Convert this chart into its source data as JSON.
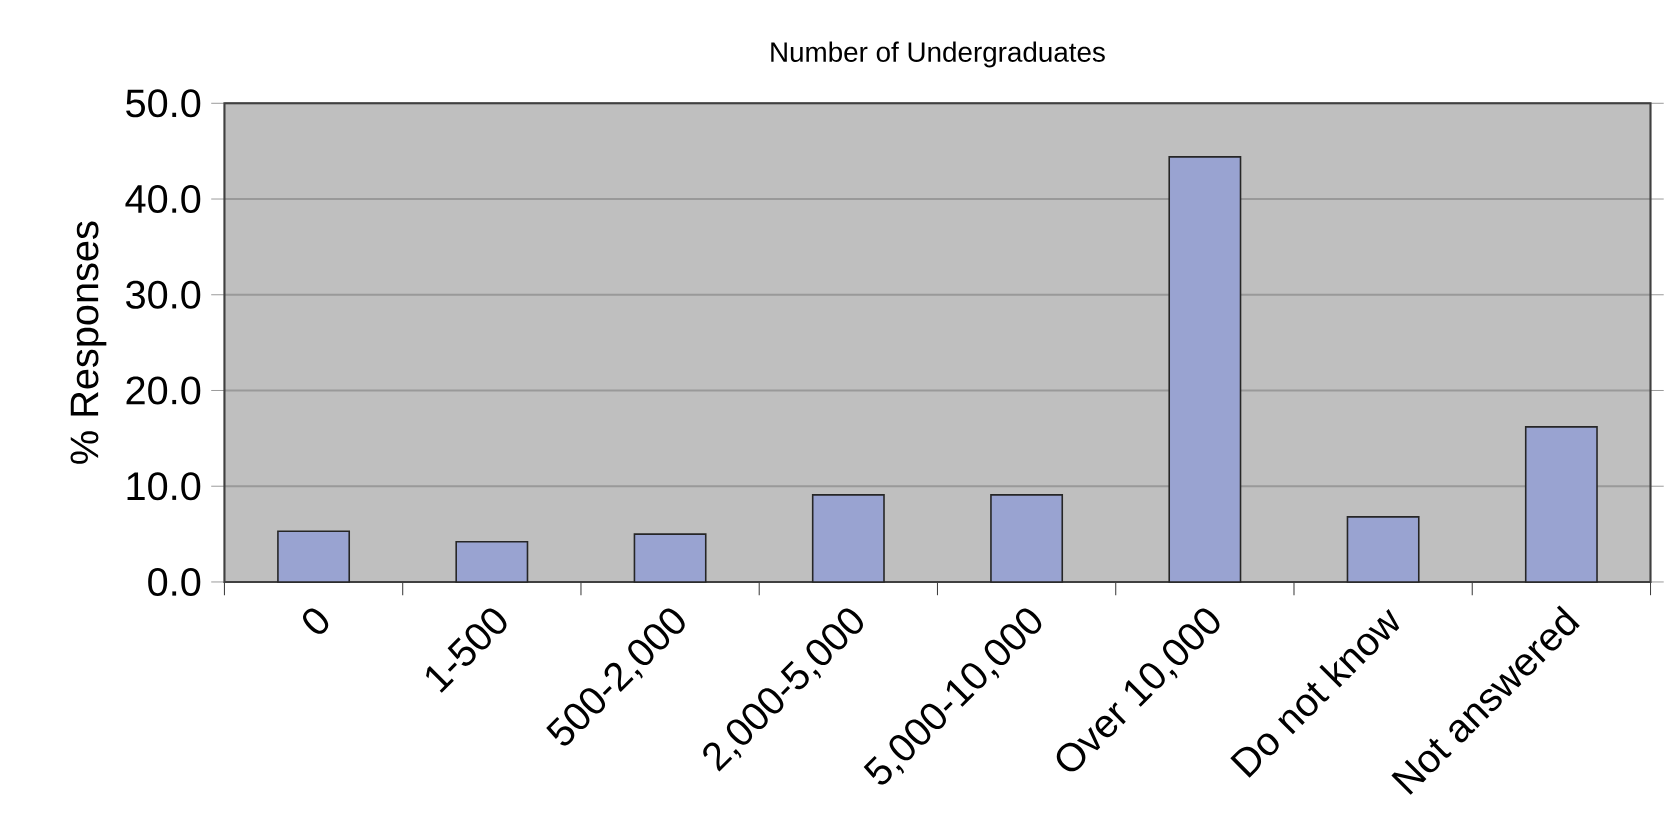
{
  "chart_data": {
    "type": "bar",
    "title": "Number of Undergraduates",
    "ylabel": "% Responses",
    "categories": [
      "0",
      "1-500",
      "500-2,000",
      "2,000-5,000",
      "5,000-10,000",
      "Over 10,000",
      "Do not know",
      "Not answered"
    ],
    "values": [
      5.3,
      4.2,
      5.0,
      9.1,
      9.1,
      44.4,
      6.8,
      16.2
    ],
    "color": "#99a3d1",
    "ylim": [
      0,
      50
    ],
    "yticks": [
      {
        "value": 0,
        "label": "0.0"
      },
      {
        "value": 10,
        "label": "10.0"
      },
      {
        "value": 20,
        "label": "20.0"
      },
      {
        "value": 30,
        "label": "30.0"
      },
      {
        "value": 40,
        "label": "40.0"
      },
      {
        "value": 50,
        "label": "50.0"
      }
    ],
    "grid": "y"
  }
}
